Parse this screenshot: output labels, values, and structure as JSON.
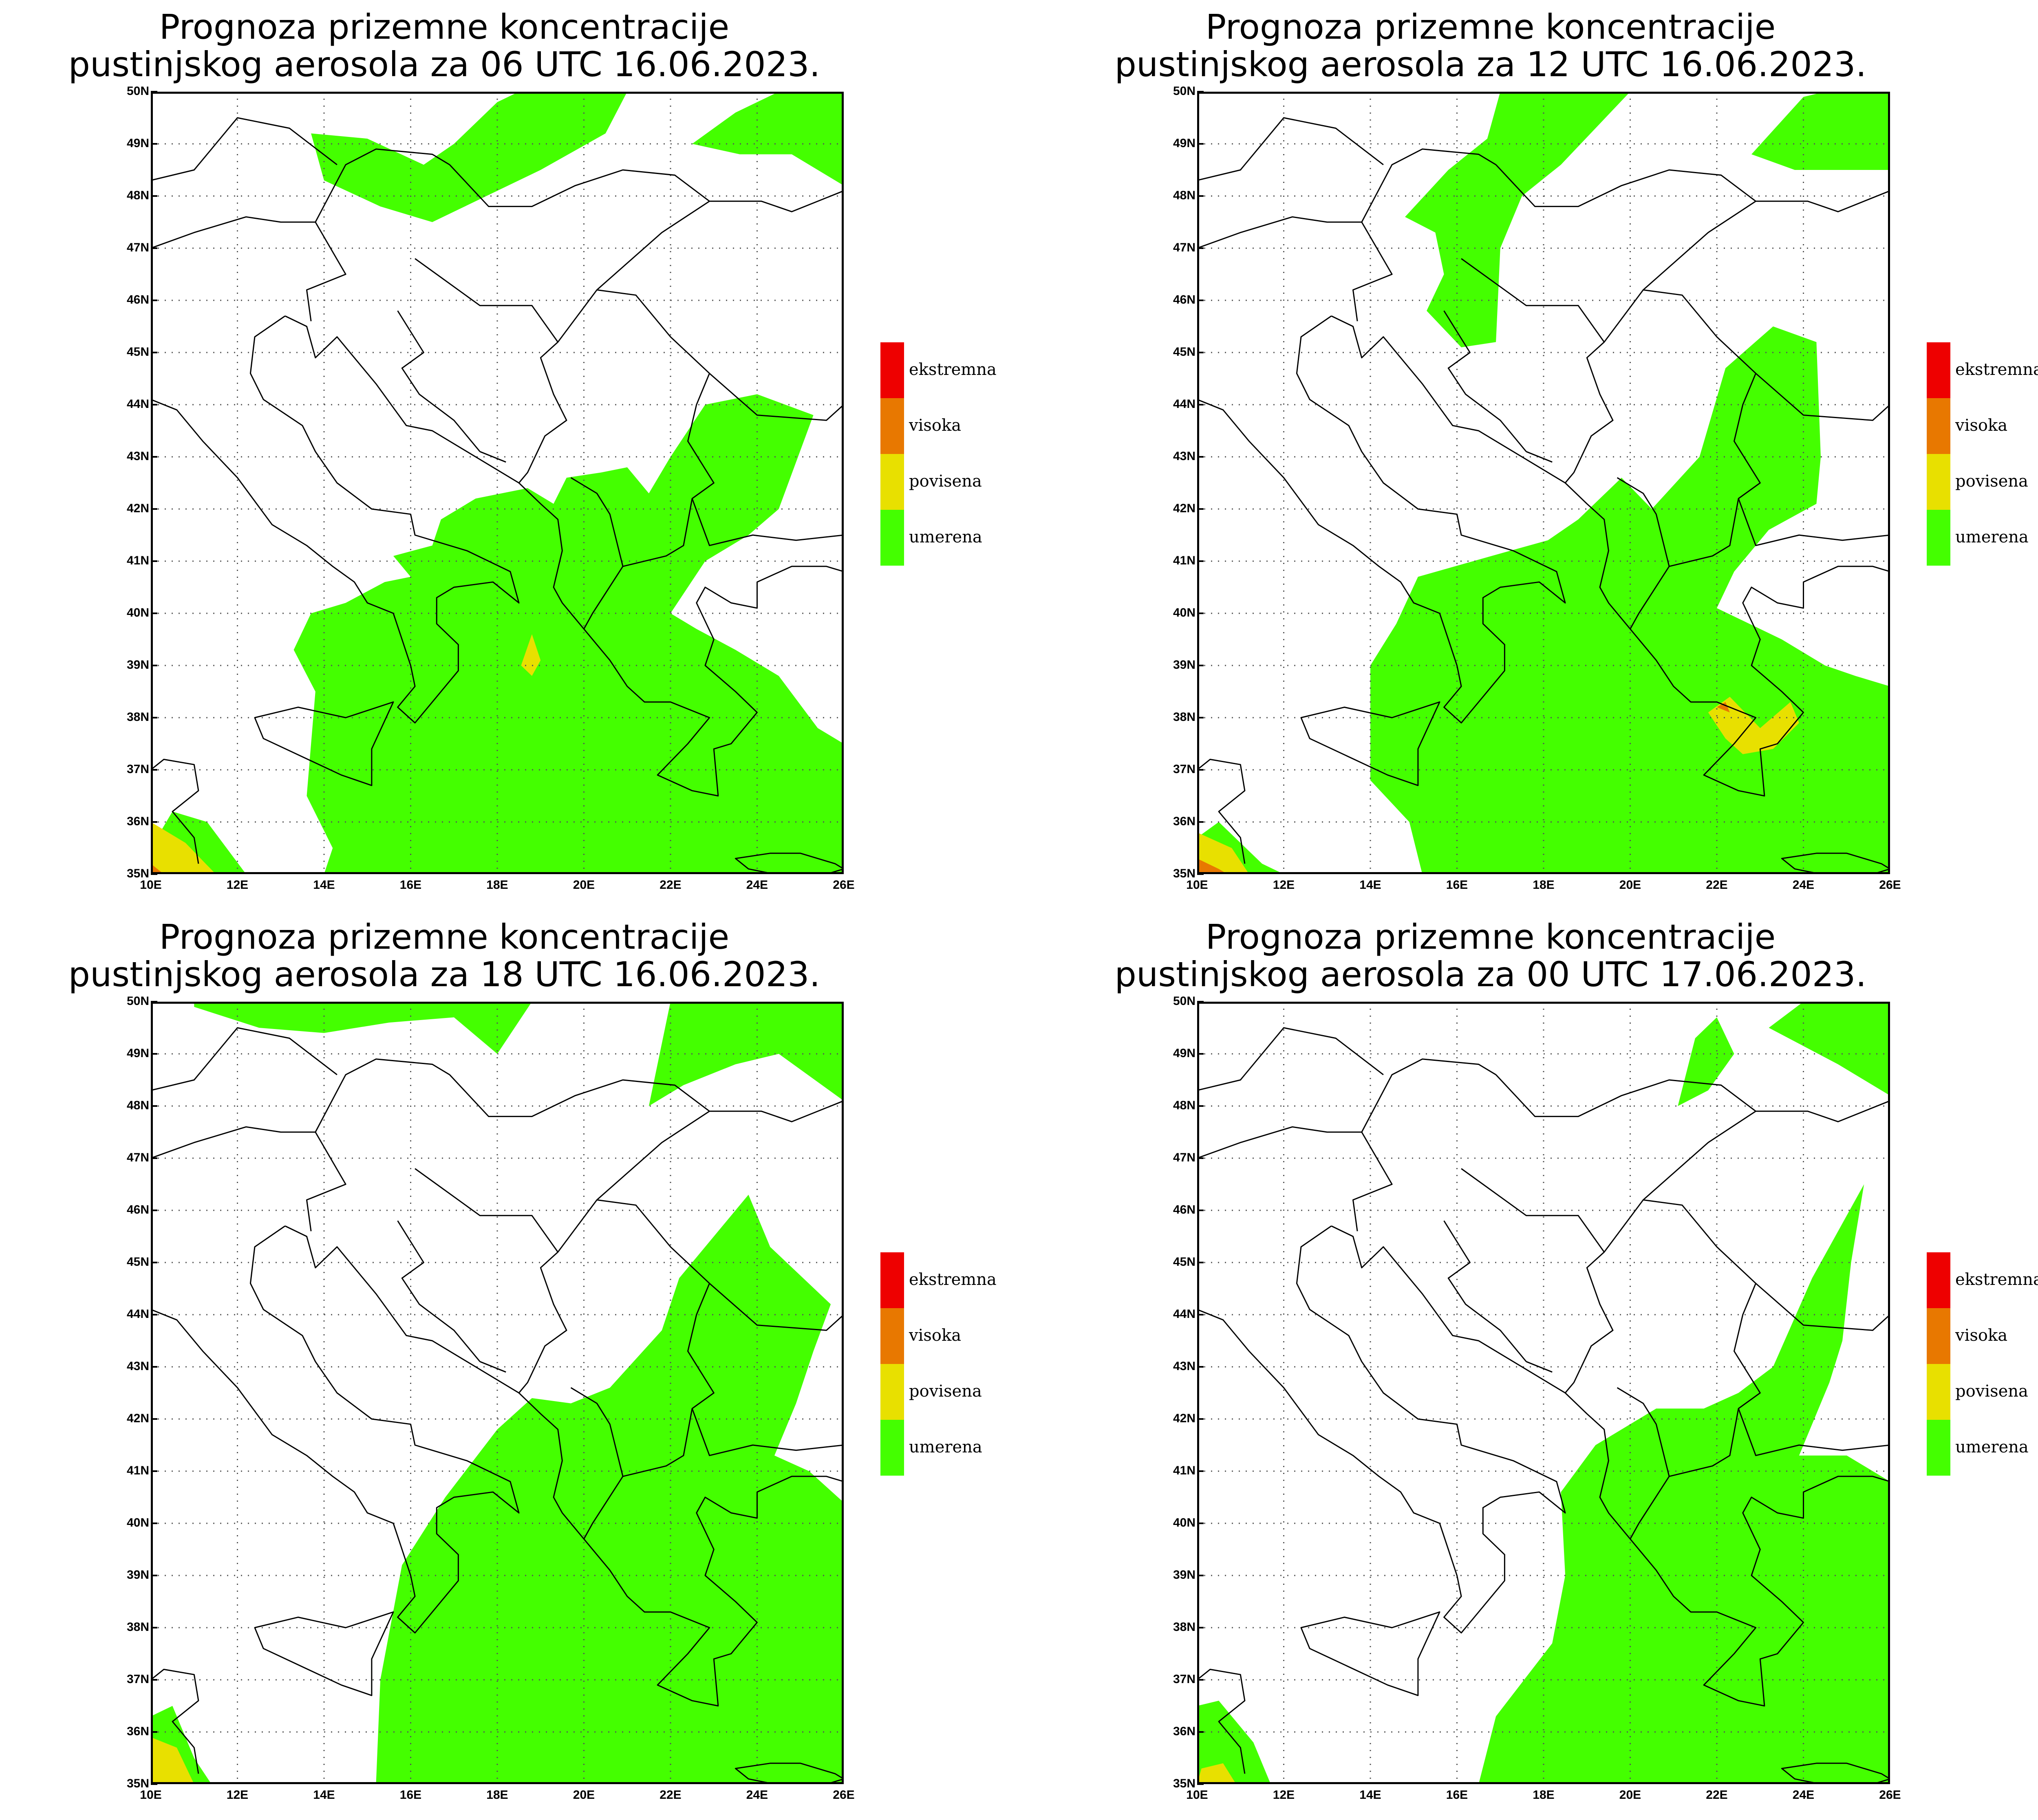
{
  "colors": {
    "umerena": "#44ff00",
    "povisena": "#e8e000",
    "visoka": "#e87800",
    "ekstremna": "#ee0000"
  },
  "legend": [
    {
      "label": "ekstremna",
      "color": "#ee0000"
    },
    {
      "label": "visoka",
      "color": "#e87800"
    },
    {
      "label": "povisena",
      "color": "#e8e000"
    },
    {
      "label": "umerena",
      "color": "#44ff00"
    }
  ],
  "axes": {
    "lat_labels": [
      "50N",
      "49N",
      "48N",
      "47N",
      "46N",
      "45N",
      "44N",
      "43N",
      "42N",
      "41N",
      "40N",
      "39N",
      "38N",
      "37N",
      "36N",
      "35N"
    ],
    "lon_labels": [
      "10E",
      "12E",
      "14E",
      "16E",
      "18E",
      "20E",
      "22E",
      "24E",
      "26E"
    ]
  },
  "panels": [
    {
      "title_line1": "Prognoza prizemne koncentracije",
      "title_line2": "pustinjskog aerosola za 06 UTC 16.06.2023."
    },
    {
      "title_line1": "Prognoza prizemne koncentracije",
      "title_line2": "pustinjskog aerosola za 12 UTC 16.06.2023."
    },
    {
      "title_line1": "Prognoza prizemne koncentracije",
      "title_line2": "pustinjskog aerosola za 18 UTC 16.06.2023."
    },
    {
      "title_line1": "Prognoza prizemne koncentracije",
      "title_line2": "pustinjskog aerosola za 00 UTC 17.06.2023."
    }
  ]
}
